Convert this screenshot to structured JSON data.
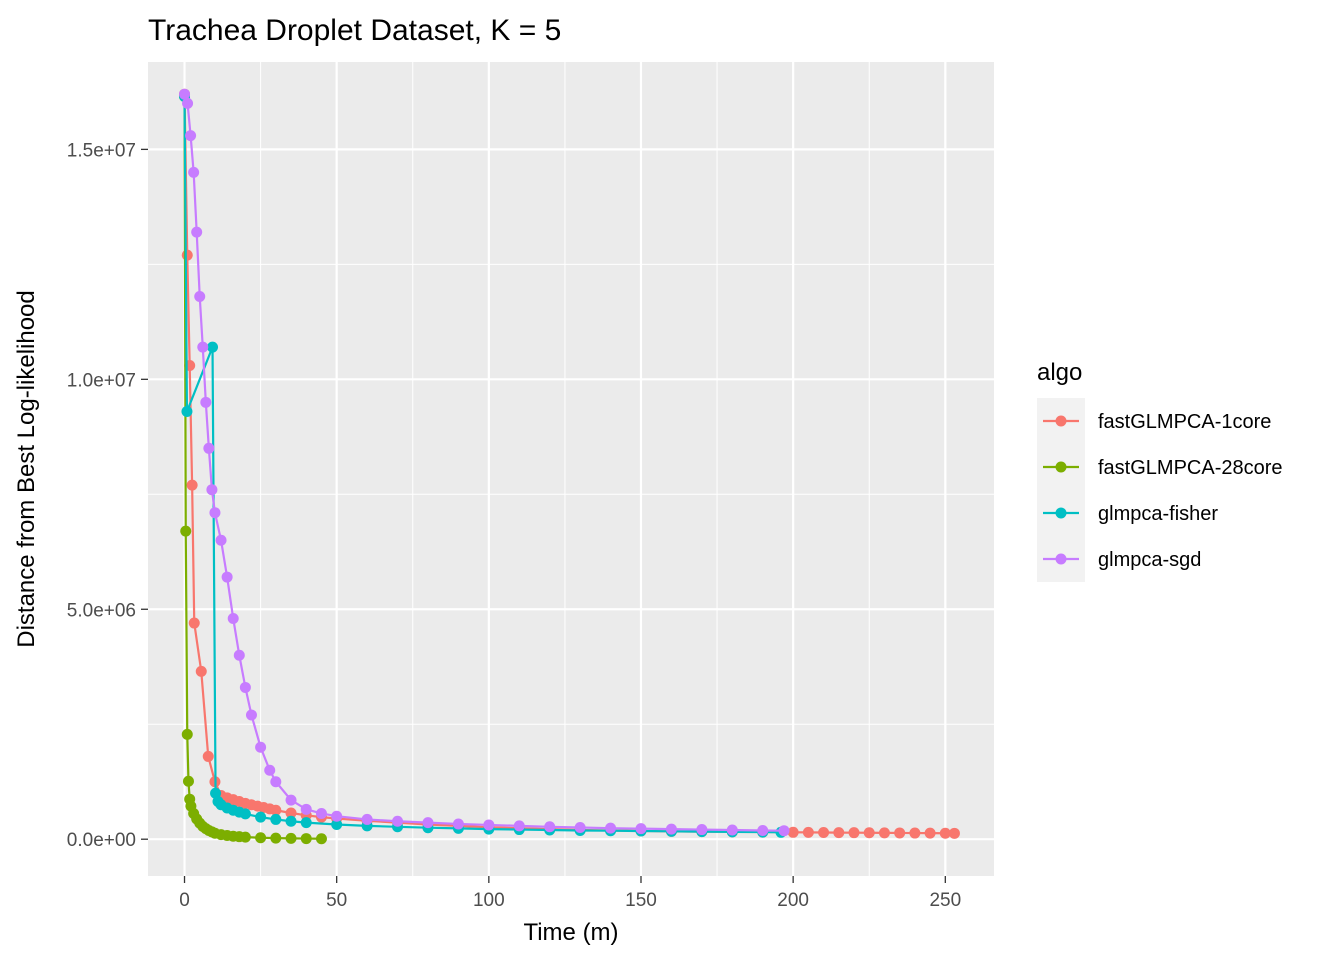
{
  "chart_data": {
    "type": "line",
    "title": "Trachea Droplet Dataset, K = 5",
    "xlabel": "Time (m)",
    "ylabel": "Distance from Best Log-likelihood",
    "xlim": [
      -12,
      266
    ],
    "ylim": [
      -800000,
      16900000
    ],
    "x_ticks": [
      0,
      50,
      100,
      150,
      200,
      250
    ],
    "x_tick_labels": [
      "0",
      "50",
      "100",
      "150",
      "200",
      "250"
    ],
    "y_ticks": [
      0,
      5000000,
      10000000,
      15000000
    ],
    "y_tick_labels": [
      "0.0e+00",
      "5.0e+06",
      "1.0e+07",
      "1.5e+07"
    ],
    "grid": true,
    "legend_title": "algo",
    "legend_position": "right",
    "series": [
      {
        "name": "fastGLMPCA-1core",
        "color": "#F8766D",
        "x": [
          0,
          0.9,
          1.7,
          2.5,
          3.2,
          5.5,
          7.8,
          10,
          12,
          14,
          16,
          18,
          20,
          22,
          24,
          26,
          28,
          30,
          35,
          40,
          45,
          50,
          60,
          70,
          80,
          90,
          100,
          110,
          120,
          130,
          140,
          150,
          160,
          170,
          180,
          190,
          200,
          205,
          210,
          215,
          220,
          225,
          230,
          235,
          240,
          245,
          250,
          253
        ],
        "y": [
          16200000,
          12700000,
          10300000,
          7700000,
          4700000,
          3650000,
          1800000,
          1250000,
          950000,
          900000,
          860000,
          820000,
          780000,
          750000,
          720000,
          690000,
          660000,
          630000,
          570000,
          520000,
          480000,
          450000,
          400000,
          360000,
          320000,
          290000,
          260000,
          240000,
          220000,
          200000,
          190000,
          180000,
          170000,
          165000,
          160000,
          155000,
          150000,
          148000,
          146000,
          144000,
          142000,
          140000,
          138000,
          136000,
          134000,
          132000,
          130000,
          128000
        ]
      },
      {
        "name": "fastGLMPCA-28core",
        "color": "#7CAE00",
        "x": [
          0,
          0.4,
          0.9,
          1.3,
          1.7,
          2.1,
          3,
          4,
          5,
          6,
          7,
          8,
          9,
          10,
          12,
          14,
          16,
          18,
          20,
          25,
          30,
          35,
          40,
          45
        ],
        "y": [
          16150000,
          6700000,
          2280000,
          1260000,
          870000,
          720000,
          560000,
          440000,
          350000,
          280000,
          230000,
          190000,
          160000,
          130000,
          100000,
          80000,
          65000,
          55000,
          45000,
          32000,
          24000,
          18000,
          14000,
          10000
        ]
      },
      {
        "name": "glmpca-fisher",
        "color": "#00BFC4",
        "x": [
          0,
          0.8,
          9.2,
          10.2,
          11,
          12,
          14,
          16,
          18,
          20,
          25,
          30,
          35,
          40,
          50,
          60,
          70,
          80,
          90,
          100,
          110,
          120,
          130,
          140,
          150,
          160,
          170,
          180,
          190,
          196
        ],
        "y": [
          16150000,
          9300000,
          10700000,
          1000000,
          820000,
          750000,
          680000,
          630000,
          590000,
          550000,
          480000,
          430000,
          390000,
          360000,
          320000,
          290000,
          270000,
          250000,
          235000,
          220000,
          210000,
          200000,
          190000,
          185000,
          178000,
          172000,
          165000,
          160000,
          155000,
          150000
        ]
      },
      {
        "name": "glmpca-sgd",
        "color": "#C77CFF",
        "x": [
          0,
          1,
          2,
          3,
          4,
          5,
          6,
          7,
          8,
          9,
          10,
          12,
          14,
          16,
          18,
          20,
          22,
          25,
          28,
          30,
          35,
          40,
          45,
          50,
          60,
          70,
          80,
          90,
          100,
          110,
          120,
          130,
          140,
          150,
          160,
          170,
          180,
          190,
          197
        ],
        "y": [
          16200000,
          16000000,
          15300000,
          14500000,
          13200000,
          11800000,
          10700000,
          9500000,
          8500000,
          7600000,
          7100000,
          6500000,
          5700000,
          4800000,
          4000000,
          3300000,
          2700000,
          2000000,
          1500000,
          1250000,
          850000,
          650000,
          560000,
          500000,
          430000,
          390000,
          360000,
          330000,
          310000,
          290000,
          270000,
          255000,
          240000,
          230000,
          220000,
          210000,
          200000,
          190000,
          185000
        ]
      }
    ]
  }
}
